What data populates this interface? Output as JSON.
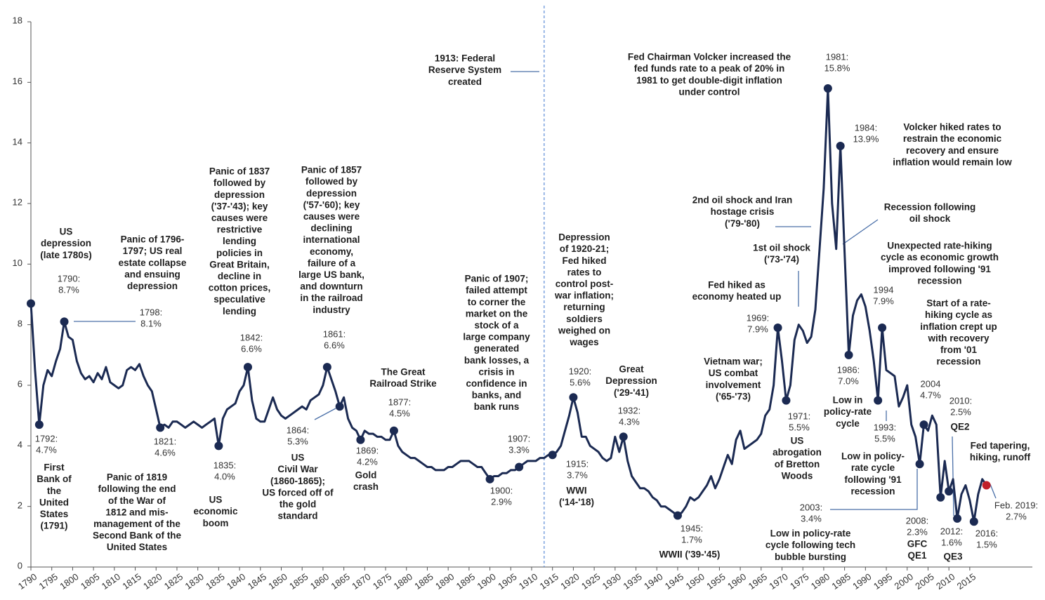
{
  "chart_data": {
    "type": "line",
    "x": [
      1790,
      1791,
      1792,
      1793,
      1794,
      1795,
      1796,
      1797,
      1798,
      1799,
      1800,
      1801,
      1802,
      1803,
      1804,
      1805,
      1806,
      1807,
      1808,
      1809,
      1810,
      1811,
      1812,
      1813,
      1814,
      1815,
      1816,
      1817,
      1818,
      1819,
      1820,
      1821,
      1822,
      1823,
      1824,
      1825,
      1826,
      1827,
      1828,
      1829,
      1830,
      1831,
      1832,
      1833,
      1834,
      1835,
      1836,
      1837,
      1838,
      1839,
      1840,
      1841,
      1842,
      1843,
      1844,
      1845,
      1846,
      1847,
      1848,
      1849,
      1850,
      1851,
      1852,
      1853,
      1854,
      1855,
      1856,
      1857,
      1858,
      1859,
      1860,
      1861,
      1862,
      1863,
      1864,
      1865,
      1866,
      1867,
      1868,
      1869,
      1870,
      1871,
      1872,
      1873,
      1874,
      1875,
      1876,
      1877,
      1878,
      1879,
      1880,
      1881,
      1882,
      1883,
      1884,
      1885,
      1886,
      1887,
      1888,
      1889,
      1890,
      1891,
      1892,
      1893,
      1894,
      1895,
      1896,
      1897,
      1898,
      1899,
      1900,
      1901,
      1902,
      1903,
      1904,
      1905,
      1906,
      1907,
      1908,
      1909,
      1910,
      1911,
      1912,
      1913,
      1914,
      1915,
      1916,
      1917,
      1918,
      1919,
      1920,
      1921,
      1922,
      1923,
      1924,
      1925,
      1926,
      1927,
      1928,
      1929,
      1930,
      1931,
      1932,
      1933,
      1934,
      1935,
      1936,
      1937,
      1938,
      1939,
      1940,
      1941,
      1942,
      1943,
      1944,
      1945,
      1946,
      1947,
      1948,
      1949,
      1950,
      1951,
      1952,
      1953,
      1954,
      1955,
      1956,
      1957,
      1958,
      1959,
      1960,
      1961,
      1962,
      1963,
      1964,
      1965,
      1966,
      1967,
      1968,
      1969,
      1970,
      1971,
      1972,
      1973,
      1974,
      1975,
      1976,
      1977,
      1978,
      1979,
      1980,
      1981,
      1982,
      1983,
      1984,
      1985,
      1986,
      1987,
      1988,
      1989,
      1990,
      1991,
      1992,
      1993,
      1994,
      1995,
      1996,
      1997,
      1998,
      1999,
      2000,
      2001,
      2002,
      2003,
      2004,
      2005,
      2006,
      2007,
      2008,
      2009,
      2010,
      2011,
      2012,
      2013,
      2014,
      2015,
      2016,
      2017,
      2018,
      2019
    ],
    "values": [
      8.7,
      6.5,
      4.7,
      6.0,
      6.5,
      6.3,
      6.8,
      7.2,
      8.1,
      7.6,
      7.5,
      6.8,
      6.4,
      6.2,
      6.3,
      6.1,
      6.4,
      6.2,
      6.6,
      6.1,
      6.0,
      5.9,
      6.0,
      6.5,
      6.6,
      6.5,
      6.7,
      6.3,
      6.0,
      5.8,
      5.2,
      4.6,
      4.7,
      4.6,
      4.8,
      4.8,
      4.7,
      4.6,
      4.7,
      4.8,
      4.7,
      4.6,
      4.7,
      4.8,
      4.9,
      4.0,
      4.9,
      5.2,
      5.3,
      5.4,
      5.8,
      6.0,
      6.6,
      5.5,
      4.9,
      4.8,
      4.8,
      5.2,
      5.6,
      5.2,
      5.0,
      4.9,
      5.0,
      5.1,
      5.2,
      5.3,
      5.2,
      5.5,
      5.6,
      5.7,
      6.0,
      6.6,
      6.2,
      5.8,
      5.3,
      5.6,
      4.9,
      4.6,
      4.5,
      4.2,
      4.5,
      4.4,
      4.4,
      4.3,
      4.3,
      4.2,
      4.2,
      4.5,
      4.0,
      3.8,
      3.7,
      3.6,
      3.6,
      3.5,
      3.4,
      3.3,
      3.3,
      3.2,
      3.2,
      3.2,
      3.3,
      3.3,
      3.4,
      3.5,
      3.5,
      3.5,
      3.4,
      3.3,
      3.3,
      3.1,
      2.9,
      3.0,
      3.0,
      3.1,
      3.1,
      3.2,
      3.2,
      3.3,
      3.4,
      3.5,
      3.5,
      3.5,
      3.6,
      3.6,
      3.7,
      3.7,
      3.8,
      4.0,
      4.5,
      5.0,
      5.6,
      5.1,
      4.3,
      4.3,
      4.0,
      3.9,
      3.8,
      3.6,
      3.5,
      3.6,
      4.3,
      3.8,
      4.3,
      3.5,
      3.0,
      2.8,
      2.6,
      2.6,
      2.5,
      2.3,
      2.2,
      2.0,
      2.0,
      1.9,
      1.8,
      1.7,
      1.8,
      2.0,
      2.3,
      2.2,
      2.3,
      2.5,
      2.7,
      3.0,
      2.6,
      2.9,
      3.3,
      3.7,
      3.4,
      4.2,
      4.5,
      3.9,
      4.0,
      4.1,
      4.2,
      4.4,
      5.0,
      5.2,
      6.0,
      7.9,
      6.8,
      5.5,
      6.0,
      7.5,
      8.0,
      7.8,
      7.4,
      7.6,
      8.5,
      10.5,
      12.5,
      15.8,
      12.0,
      10.5,
      13.9,
      10.4,
      7.0,
      8.3,
      8.8,
      9.0,
      8.6,
      7.8,
      6.8,
      5.5,
      7.9,
      6.5,
      6.4,
      6.3,
      5.3,
      5.6,
      6.0,
      4.7,
      4.3,
      3.4,
      4.7,
      4.5,
      5.0,
      4.7,
      2.3,
      3.5,
      2.5,
      2.9,
      1.6,
      2.4,
      2.7,
      2.2,
      1.5,
      2.4,
      2.9,
      2.7
    ],
    "color": "#1b2a52",
    "xlim": [
      1790,
      2030
    ],
    "ylim": [
      0,
      18
    ],
    "yticks": [
      0,
      2,
      4,
      6,
      8,
      10,
      12,
      14,
      16,
      18
    ],
    "xticks": [
      1790,
      1795,
      1800,
      1805,
      1810,
      1815,
      1820,
      1825,
      1830,
      1835,
      1840,
      1845,
      1850,
      1855,
      1860,
      1865,
      1870,
      1875,
      1880,
      1885,
      1890,
      1895,
      1900,
      1905,
      1910,
      1915,
      1920,
      1925,
      1930,
      1935,
      1940,
      1945,
      1950,
      1955,
      1960,
      1965,
      1970,
      1975,
      1980,
      1985,
      1990,
      1995,
      2000,
      2005,
      2010,
      2015
    ],
    "reference_line": {
      "x": 1913,
      "style": "dashed",
      "color": "#5b8bd6"
    },
    "markers": [
      {
        "x": 1790,
        "y": 8.7,
        "label": "1790:",
        "value_label": "8.7%"
      },
      {
        "x": 1792,
        "y": 4.7,
        "label": "1792:",
        "value_label": "4.7%"
      },
      {
        "x": 1798,
        "y": 8.1,
        "label": "1798:",
        "value_label": "8.1%"
      },
      {
        "x": 1821,
        "y": 4.6,
        "label": "1821:",
        "value_label": "4.6%"
      },
      {
        "x": 1835,
        "y": 4.0,
        "label": "1835:",
        "value_label": "4.0%"
      },
      {
        "x": 1842,
        "y": 6.6,
        "label": "1842:",
        "value_label": "6.6%"
      },
      {
        "x": 1861,
        "y": 6.6,
        "label": "1861:",
        "value_label": "6.6%"
      },
      {
        "x": 1864,
        "y": 5.3,
        "label": "1864:",
        "value_label": "5.3%"
      },
      {
        "x": 1869,
        "y": 4.2,
        "label": "1869:",
        "value_label": "4.2%"
      },
      {
        "x": 1877,
        "y": 4.5,
        "label": "1877:",
        "value_label": "4.5%"
      },
      {
        "x": 1900,
        "y": 2.9,
        "label": "1900:",
        "value_label": "2.9%"
      },
      {
        "x": 1907,
        "y": 3.3,
        "label": "1907:",
        "value_label": "3.3%"
      },
      {
        "x": 1915,
        "y": 3.7,
        "label": "1915:",
        "value_label": "3.7%"
      },
      {
        "x": 1920,
        "y": 5.6,
        "label": "1920:",
        "value_label": "5.6%"
      },
      {
        "x": 1932,
        "y": 4.3,
        "label": "1932:",
        "value_label": "4.3%"
      },
      {
        "x": 1945,
        "y": 1.7,
        "label": "1945:",
        "value_label": "1.7%"
      },
      {
        "x": 1969,
        "y": 7.9,
        "label": "1969:",
        "value_label": "7.9%"
      },
      {
        "x": 1971,
        "y": 5.5,
        "label": "1971:",
        "value_label": "5.5%"
      },
      {
        "x": 1981,
        "y": 15.8,
        "label": "1981:",
        "value_label": "15.8%"
      },
      {
        "x": 1984,
        "y": 13.9,
        "label": "1984:",
        "value_label": "13.9%"
      },
      {
        "x": 1986,
        "y": 7.0,
        "label": "1986:",
        "value_label": "7.0%"
      },
      {
        "x": 1994,
        "y": 7.9,
        "label": "1994",
        "value_label": "7.9%"
      },
      {
        "x": 1993,
        "y": 5.5,
        "label": "1993:",
        "value_label": "5.5%"
      },
      {
        "x": 2003,
        "y": 3.4,
        "label": "2003:",
        "value_label": "3.4%"
      },
      {
        "x": 2004,
        "y": 4.7,
        "label": "2004",
        "value_label": "4.7%"
      },
      {
        "x": 2008,
        "y": 2.3,
        "label": "2008:",
        "value_label": "2.3%"
      },
      {
        "x": 2010,
        "y": 2.5,
        "label": "2010:",
        "value_label": "2.5%"
      },
      {
        "x": 2012,
        "y": 1.6,
        "label": "2012:",
        "value_label": "1.6%"
      },
      {
        "x": 2016,
        "y": 1.5,
        "label": "2016:",
        "value_label": "1.5%"
      },
      {
        "x": 2019,
        "y": 2.7,
        "label": "Feb. 2019:",
        "value_label": "2.7%",
        "color": "#c0202a"
      }
    ],
    "annotations": [
      {
        "lines": [
          "US",
          "depression",
          "(late 1780s)"
        ]
      },
      {
        "lines": [
          "Panic of 1796-",
          "1797; US real",
          "estate collapse",
          "and ensuing",
          "depression"
        ]
      },
      {
        "lines": [
          "Panic of 1837",
          "followed by",
          "depression",
          "('37-'43); key",
          "causes were",
          "restrictive",
          "lending",
          "policies in",
          "Great Britain,",
          "decline in",
          "cotton prices,",
          "speculative",
          "lending"
        ]
      },
      {
        "lines": [
          "Panic of 1857",
          "followed by",
          "depression",
          "('57-'60); key",
          "causes were",
          "declining",
          "international",
          "economy,",
          "failure of a",
          "large US bank,",
          "and downturn",
          "in the railroad",
          "industry"
        ]
      },
      {
        "lines": [
          "1913: Federal",
          "Reserve System",
          "created"
        ]
      },
      {
        "lines": [
          "Panic of 1907;",
          "failed attempt",
          "to corner the",
          "market on the",
          "stock of a",
          "large company",
          "generated",
          "bank losses, a",
          "crisis in",
          "confidence in",
          "banks, and",
          "bank runs"
        ]
      },
      {
        "lines": [
          "The Great",
          "Railroad Strike"
        ]
      },
      {
        "lines": [
          "Depression",
          "of 1920-21;",
          "Fed hiked",
          "rates to",
          "control post-",
          "war inflation;",
          "returning",
          "soldiers",
          "weighed on",
          "wages"
        ]
      },
      {
        "lines": [
          "Great",
          "Depression",
          "('29-'41)"
        ]
      },
      {
        "lines": [
          "Fed Chairman Volcker increased the",
          "fed funds rate to a peak of 20% in",
          "1981 to get double-digit inflation",
          "under control"
        ]
      },
      {
        "lines": [
          "Volcker hiked rates to",
          "restrain the economic",
          "recovery and ensure",
          "inflation would remain low"
        ]
      },
      {
        "lines": [
          "2nd oil shock and Iran",
          "hostage crisis",
          "('79-'80)"
        ]
      },
      {
        "lines": [
          "Recession following",
          "oil shock"
        ]
      },
      {
        "lines": [
          "1st oil shock",
          "('73-'74)"
        ]
      },
      {
        "lines": [
          "Fed hiked as",
          "economy heated up"
        ]
      },
      {
        "lines": [
          "Unexpected rate-hiking",
          "cycle as economic growth",
          "improved following '91",
          "recession"
        ]
      },
      {
        "lines": [
          "Start of a rate-",
          "hiking cycle as",
          "inflation crept up",
          "with recovery",
          "from '01",
          "recession"
        ]
      },
      {
        "lines": [
          "Vietnam war;",
          "US combat",
          "involvement",
          "('65-'73)"
        ]
      },
      {
        "lines": [
          "Low in",
          "policy-rate",
          "cycle"
        ]
      },
      {
        "lines": [
          "Fed tapering,",
          "hiking, runoff"
        ]
      },
      {
        "lines": [
          "US",
          "abrogation",
          "of Bretton",
          "Woods"
        ]
      },
      {
        "lines": [
          "Low in policy-",
          "rate cycle",
          "following '91",
          "recession"
        ]
      },
      {
        "lines": [
          "Low in policy-rate",
          "cycle following tech",
          "bubble bursting"
        ]
      },
      {
        "lines": [
          "First",
          "Bank of",
          "the",
          "United",
          "States",
          "(1791)"
        ]
      },
      {
        "lines": [
          "Panic of 1819",
          "following the end",
          "of the War of",
          "1812 and mis-",
          "management of the",
          "Second Bank of the",
          "United States"
        ]
      },
      {
        "lines": [
          "US",
          "economic",
          "boom"
        ]
      },
      {
        "lines": [
          "US",
          "Civil War",
          "(1860-1865);",
          "US forced off of",
          "the gold",
          "standard"
        ]
      },
      {
        "lines": [
          "Gold",
          "crash"
        ]
      },
      {
        "lines": [
          "WWI",
          "('14-'18)"
        ]
      },
      {
        "lines": [
          "WWII ('39-'45)"
        ]
      },
      {
        "lines": [
          "GFC",
          "QE1"
        ]
      },
      {
        "lines": [
          "QE3"
        ]
      },
      {
        "lines": [
          "QE2"
        ]
      }
    ]
  }
}
